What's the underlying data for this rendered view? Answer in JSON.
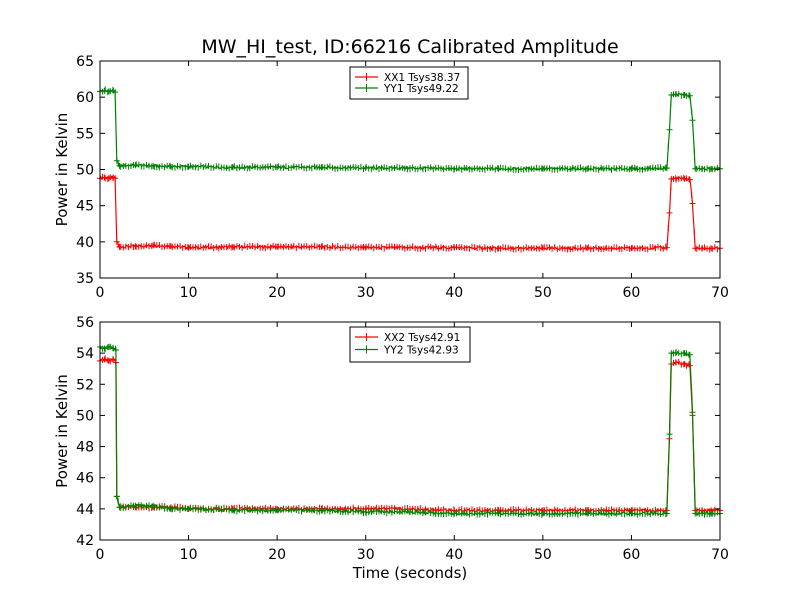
{
  "figure": {
    "title": "MW_HI_test, ID:66216 Calibrated Amplitude",
    "xlabel": "Time (seconds)"
  },
  "chart_data": [
    {
      "type": "line",
      "ylabel": "Power in Kelvin",
      "xlim": [
        0,
        70
      ],
      "ylim": [
        35,
        65
      ],
      "xticks": [
        "0",
        "10",
        "20",
        "30",
        "40",
        "50",
        "60",
        "70"
      ],
      "yticks": [
        "35",
        "40",
        "45",
        "50",
        "55",
        "60",
        "65"
      ],
      "legend_position": "top-center",
      "grid": false,
      "series": [
        {
          "name": "XX1 Tsys38.37",
          "color": "#ff0000",
          "points": [
            [
              0,
              48.8
            ],
            [
              0.5,
              48.9
            ],
            [
              1,
              48.8
            ],
            [
              1.5,
              48.9
            ],
            [
              1.7,
              48.8
            ],
            [
              1.9,
              40.0
            ],
            [
              2.2,
              39.3
            ],
            [
              4,
              39.4
            ],
            [
              6,
              39.5
            ],
            [
              8,
              39.4
            ],
            [
              10,
              39.2
            ],
            [
              15,
              39.3
            ],
            [
              20,
              39.3
            ],
            [
              25,
              39.3
            ],
            [
              30,
              39.2
            ],
            [
              35,
              39.2
            ],
            [
              40,
              39.2
            ],
            [
              45,
              39.1
            ],
            [
              50,
              39.1
            ],
            [
              55,
              39.1
            ],
            [
              60,
              39.1
            ],
            [
              64,
              39.2
            ],
            [
              64.3,
              44.0
            ],
            [
              64.5,
              48.7
            ],
            [
              65,
              48.8
            ],
            [
              66,
              48.7
            ],
            [
              66.6,
              48.6
            ],
            [
              66.9,
              45.3
            ],
            [
              67.2,
              39.1
            ],
            [
              68,
              39.1
            ],
            [
              69,
              39.1
            ],
            [
              70,
              39.1
            ]
          ]
        },
        {
          "name": "YY1 Tsys49.22",
          "color": "#008000",
          "points": [
            [
              0,
              60.8
            ],
            [
              0.5,
              60.9
            ],
            [
              1,
              60.8
            ],
            [
              1.5,
              60.9
            ],
            [
              1.7,
              60.7
            ],
            [
              1.9,
              51.2
            ],
            [
              2.2,
              50.5
            ],
            [
              4,
              50.6
            ],
            [
              6,
              50.5
            ],
            [
              8,
              50.4
            ],
            [
              10,
              50.4
            ],
            [
              15,
              50.3
            ],
            [
              20,
              50.3
            ],
            [
              25,
              50.3
            ],
            [
              30,
              50.2
            ],
            [
              35,
              50.2
            ],
            [
              40,
              50.1
            ],
            [
              45,
              50.1
            ],
            [
              50,
              50.1
            ],
            [
              55,
              50.1
            ],
            [
              60,
              50.1
            ],
            [
              64,
              50.2
            ],
            [
              64.3,
              55.5
            ],
            [
              64.5,
              60.3
            ],
            [
              65,
              60.4
            ],
            [
              66,
              60.3
            ],
            [
              66.6,
              60.2
            ],
            [
              66.9,
              56.8
            ],
            [
              67.2,
              50.1
            ],
            [
              68,
              50.1
            ],
            [
              69,
              50.1
            ],
            [
              70,
              50.1
            ]
          ]
        }
      ]
    },
    {
      "type": "line",
      "ylabel": "Power in Kelvin",
      "xlabel": "Time (seconds)",
      "xlim": [
        0,
        70
      ],
      "ylim": [
        42,
        56
      ],
      "xticks": [
        "0",
        "10",
        "20",
        "30",
        "40",
        "50",
        "60",
        "70"
      ],
      "yticks": [
        "42",
        "44",
        "46",
        "48",
        "50",
        "52",
        "54",
        "56"
      ],
      "legend_position": "top-center",
      "grid": false,
      "series": [
        {
          "name": "XX2 Tsys42.91",
          "color": "#ff0000",
          "points": [
            [
              0,
              53.5
            ],
            [
              0.5,
              53.6
            ],
            [
              1,
              53.5
            ],
            [
              1.5,
              53.6
            ],
            [
              1.8,
              53.4
            ],
            [
              1.9,
              44.8
            ],
            [
              2.2,
              44.1
            ],
            [
              4,
              44.1
            ],
            [
              6,
              44.1
            ],
            [
              8,
              44.1
            ],
            [
              10,
              44.0
            ],
            [
              15,
              44.0
            ],
            [
              20,
              44.0
            ],
            [
              25,
              44.0
            ],
            [
              30,
              44.0
            ],
            [
              35,
              44.0
            ],
            [
              40,
              43.9
            ],
            [
              45,
              43.9
            ],
            [
              50,
              43.9
            ],
            [
              55,
              43.9
            ],
            [
              60,
              43.9
            ],
            [
              64,
              43.9
            ],
            [
              64.3,
              48.5
            ],
            [
              64.5,
              53.3
            ],
            [
              65,
              53.4
            ],
            [
              66,
              53.3
            ],
            [
              66.6,
              53.2
            ],
            [
              66.9,
              50.0
            ],
            [
              67.2,
              43.9
            ],
            [
              68,
              43.9
            ],
            [
              69,
              43.9
            ],
            [
              70,
              43.9
            ]
          ]
        },
        {
          "name": "YY2 Tsys42.93",
          "color": "#008000",
          "points": [
            [
              0,
              54.4
            ],
            [
              0.5,
              54.3
            ],
            [
              1,
              54.4
            ],
            [
              1.5,
              54.3
            ],
            [
              1.8,
              54.2
            ],
            [
              1.9,
              44.8
            ],
            [
              2.2,
              44.1
            ],
            [
              4,
              44.2
            ],
            [
              6,
              44.2
            ],
            [
              8,
              44.0
            ],
            [
              10,
              44.0
            ],
            [
              15,
              43.9
            ],
            [
              20,
              43.9
            ],
            [
              25,
              43.9
            ],
            [
              30,
              43.8
            ],
            [
              35,
              43.8
            ],
            [
              40,
              43.7
            ],
            [
              45,
              43.7
            ],
            [
              50,
              43.7
            ],
            [
              55,
              43.7
            ],
            [
              60,
              43.7
            ],
            [
              64,
              43.7
            ],
            [
              64.3,
              48.8
            ],
            [
              64.5,
              54.0
            ],
            [
              65,
              54.0
            ],
            [
              66,
              54.0
            ],
            [
              66.6,
              53.9
            ],
            [
              66.9,
              50.2
            ],
            [
              67.2,
              43.7
            ],
            [
              68,
              43.7
            ],
            [
              69,
              43.7
            ],
            [
              70,
              43.7
            ]
          ]
        }
      ]
    }
  ]
}
